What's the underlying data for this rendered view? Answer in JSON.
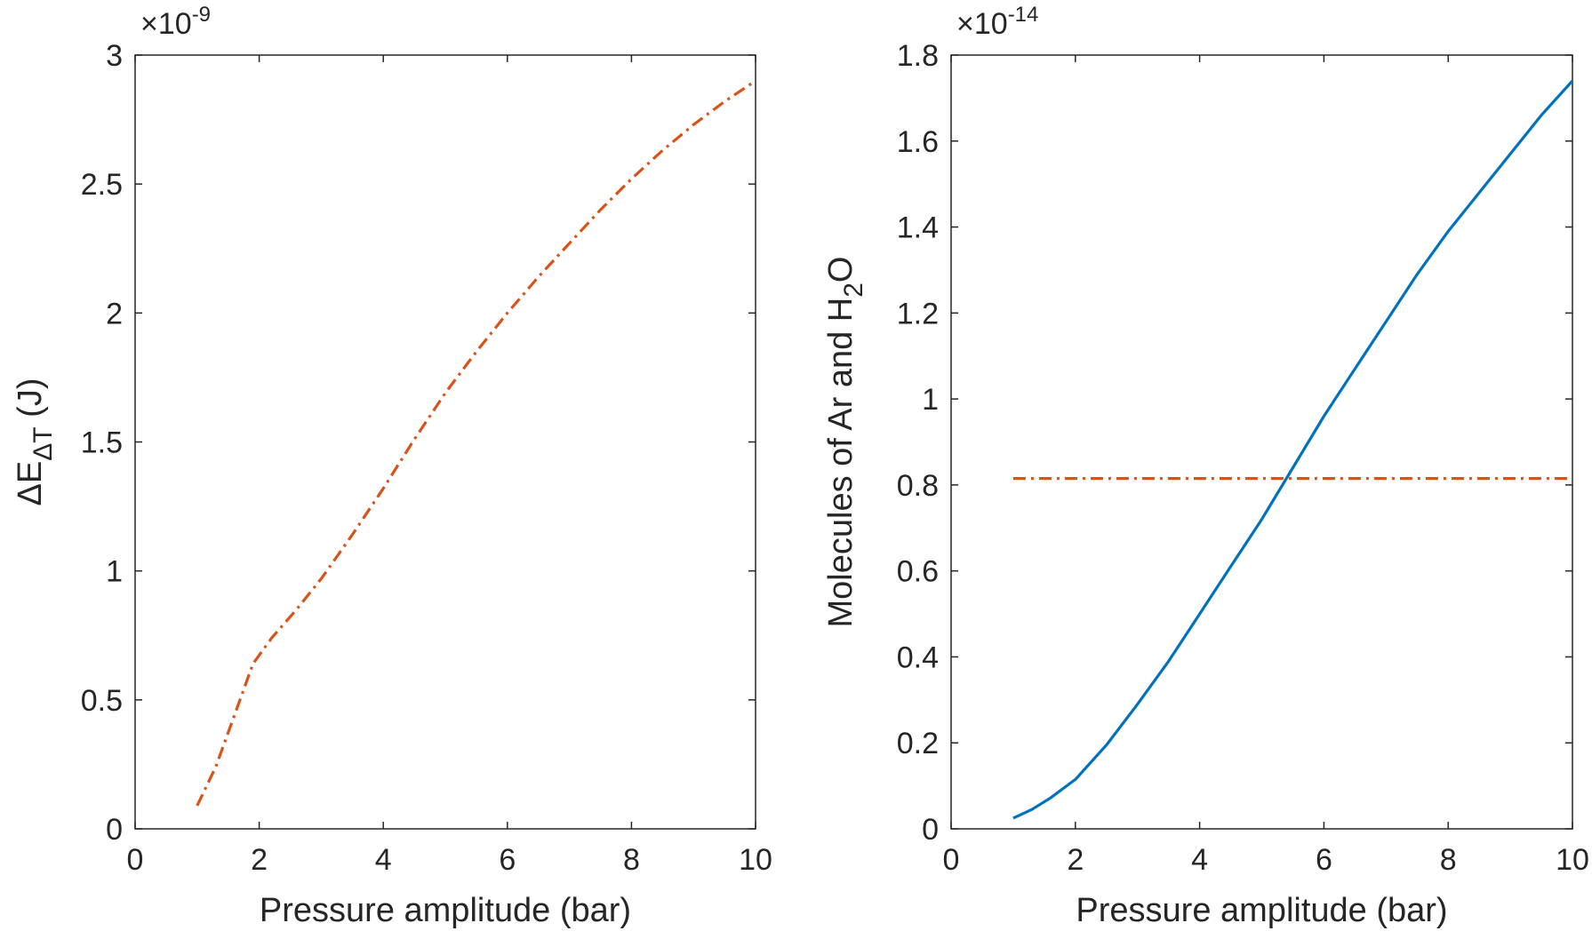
{
  "chart_data": [
    {
      "type": "line",
      "xlabel": "Pressure amplitude (bar)",
      "ylabel": {
        "main": "ΔE",
        "sub": "ΔT",
        "unit": " (J)"
      },
      "exponent": {
        "base": "×10",
        "power": "-9"
      },
      "xlim": [
        0,
        10
      ],
      "ylim": [
        0,
        3
      ],
      "xticks": [
        0,
        2,
        4,
        6,
        8,
        10
      ],
      "xtick_labels": [
        "0",
        "2",
        "4",
        "6",
        "8",
        "10"
      ],
      "yticks": [
        0,
        0.5,
        1,
        1.5,
        2,
        2.5,
        3
      ],
      "ytick_labels": [
        "0",
        "0.5",
        "1",
        "1.5",
        "2",
        "2.5",
        "3"
      ],
      "grid": false,
      "series": [
        {
          "color": "#D95319",
          "style": "dash-dot",
          "x": [
            1.0,
            1.3,
            1.6,
            1.9,
            2.2,
            2.6,
            3.0,
            3.5,
            4.0,
            4.5,
            5.0,
            5.5,
            6.0,
            6.5,
            7.0,
            7.5,
            8.0,
            8.5,
            9.0,
            9.5,
            10.0
          ],
          "y": [
            0.09,
            0.24,
            0.44,
            0.64,
            0.74,
            0.85,
            0.97,
            1.14,
            1.32,
            1.51,
            1.69,
            1.85,
            2.0,
            2.14,
            2.27,
            2.4,
            2.52,
            2.63,
            2.73,
            2.82,
            2.9
          ]
        }
      ]
    },
    {
      "type": "line",
      "xlabel": "Pressure amplitude (bar)",
      "ylabel": {
        "pre": "Molecules of Ar and H",
        "sub": "2",
        "post": "O"
      },
      "exponent": {
        "base": "×10",
        "power": "-14"
      },
      "xlim": [
        0,
        10
      ],
      "ylim": [
        0,
        1.8
      ],
      "xticks": [
        0,
        2,
        4,
        6,
        8,
        10
      ],
      "xtick_labels": [
        "0",
        "2",
        "4",
        "6",
        "8",
        "10"
      ],
      "yticks": [
        0,
        0.2,
        0.4,
        0.6,
        0.8,
        1,
        1.2,
        1.4,
        1.6,
        1.8
      ],
      "ytick_labels": [
        "0",
        "0.2",
        "0.4",
        "0.6",
        "0.8",
        "1",
        "1.2",
        "1.4",
        "1.6",
        "1.8"
      ],
      "grid": false,
      "series": [
        {
          "color": "#0072BD",
          "style": "solid",
          "x": [
            1.0,
            1.3,
            1.6,
            2.0,
            2.5,
            3.0,
            3.5,
            4.0,
            4.5,
            5.0,
            5.5,
            6.0,
            6.5,
            7.0,
            7.5,
            8.0,
            8.5,
            9.0,
            9.5,
            10.0
          ],
          "y": [
            0.025,
            0.045,
            0.072,
            0.115,
            0.195,
            0.29,
            0.39,
            0.5,
            0.61,
            0.72,
            0.84,
            0.96,
            1.07,
            1.18,
            1.29,
            1.39,
            1.48,
            1.57,
            1.66,
            1.74
          ]
        },
        {
          "color": "#D95319",
          "style": "dash-dot",
          "x": [
            1.0,
            10.0
          ],
          "y": [
            0.815,
            0.815
          ]
        }
      ]
    }
  ]
}
